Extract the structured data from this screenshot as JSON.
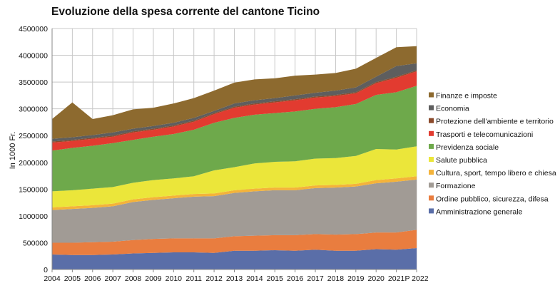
{
  "chart_data": {
    "type": "area",
    "stacked": true,
    "title": "Evoluzione della spesa corrente del cantone Ticino",
    "xlabel": "",
    "ylabel": "In 1000 Fr.",
    "ylim": [
      0,
      4500000
    ],
    "yticks": [
      "0",
      "500000",
      "1000000",
      "1500000",
      "2000000",
      "2500000",
      "3000000",
      "3500000",
      "4000000",
      "4500000"
    ],
    "categories": [
      "2004",
      "2005",
      "2006",
      "2007",
      "2008",
      "2009",
      "2010",
      "2011",
      "2012",
      "2013",
      "2014",
      "2015",
      "2016",
      "2017",
      "2018",
      "2019",
      "2020",
      "2021",
      "P 2022"
    ],
    "legend_position": "right",
    "grid": true,
    "series": [
      {
        "name": "Amministrazione generale",
        "color": "#5a6ea8",
        "values": [
          280000,
          270000,
          270000,
          280000,
          300000,
          310000,
          320000,
          320000,
          310000,
          350000,
          350000,
          360000,
          350000,
          370000,
          350000,
          350000,
          380000,
          370000,
          400000
        ]
      },
      {
        "name": "Ordine pubblico, sicurezza, difesa",
        "color": "#e97d3f",
        "values": [
          220000,
          230000,
          240000,
          240000,
          250000,
          260000,
          260000,
          260000,
          270000,
          270000,
          280000,
          280000,
          290000,
          290000,
          300000,
          310000,
          310000,
          320000,
          340000
        ]
      },
      {
        "name": "Formazione",
        "color": "#a19b95",
        "values": [
          610000,
          630000,
          640000,
          660000,
          710000,
          730000,
          750000,
          780000,
          790000,
          810000,
          830000,
          840000,
          840000,
          860000,
          880000,
          890000,
          920000,
          950000,
          940000
        ]
      },
      {
        "name": "Cultura, sport, tempo libero e chiesa",
        "color": "#f4b33a",
        "values": [
          50000,
          50000,
          50000,
          50000,
          50000,
          50000,
          50000,
          50000,
          50000,
          50000,
          50000,
          50000,
          50000,
          50000,
          50000,
          50000,
          60000,
          60000,
          60000
        ]
      },
      {
        "name": "Salute pubblica",
        "color": "#ebe63a",
        "values": [
          300000,
          300000,
          310000,
          310000,
          310000,
          320000,
          320000,
          330000,
          430000,
          430000,
          470000,
          480000,
          490000,
          500000,
          500000,
          520000,
          580000,
          540000,
          560000
        ]
      },
      {
        "name": "Previdenza sociale",
        "color": "#6ea94b",
        "values": [
          760000,
          790000,
          800000,
          820000,
          800000,
          810000,
          830000,
          870000,
          890000,
          920000,
          910000,
          910000,
          930000,
          930000,
          950000,
          970000,
          1010000,
          1070000,
          1130000
        ]
      },
      {
        "name": "Trasporti e telecomunicazioni",
        "color": "#e23b30",
        "values": [
          150000,
          130000,
          130000,
          120000,
          140000,
          130000,
          140000,
          150000,
          160000,
          190000,
          190000,
          200000,
          210000,
          210000,
          210000,
          200000,
          220000,
          270000,
          270000
        ]
      },
      {
        "name": "Protezione dell'ambiente e territorio",
        "color": "#8b4a2b",
        "values": [
          20000,
          20000,
          20000,
          20000,
          20000,
          20000,
          20000,
          20000,
          20000,
          20000,
          20000,
          20000,
          20000,
          20000,
          20000,
          20000,
          20000,
          20000,
          20000
        ]
      },
      {
        "name": "Economia",
        "color": "#5e5e5e",
        "values": [
          50000,
          50000,
          50000,
          60000,
          50000,
          50000,
          50000,
          50000,
          40000,
          60000,
          60000,
          60000,
          70000,
          70000,
          80000,
          90000,
          100000,
          200000,
          130000
        ]
      },
      {
        "name": "Finanze e imposte",
        "color": "#8d6a2f",
        "values": [
          370000,
          650000,
          300000,
          320000,
          360000,
          340000,
          360000,
          370000,
          380000,
          390000,
          390000,
          370000,
          370000,
          340000,
          330000,
          350000,
          350000,
          350000,
          320000
        ]
      }
    ]
  }
}
